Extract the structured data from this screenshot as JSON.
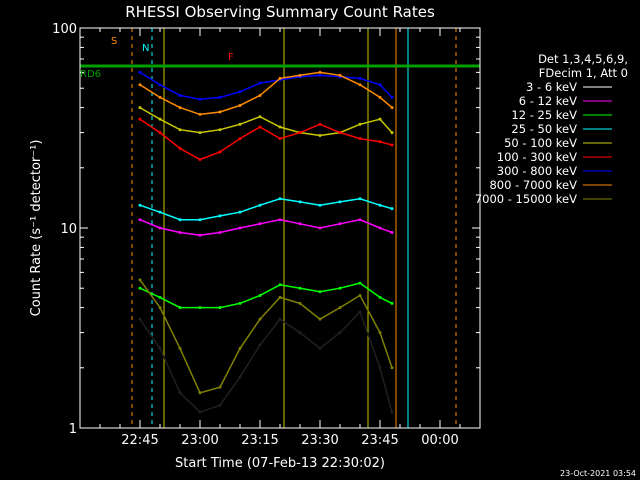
{
  "chart_data": {
    "type": "line",
    "title": "RHESSI Observing Summary Count Rates",
    "xlabel": "Start Time (07-Feb-13 22:30:02)",
    "ylabel": "Count Rate (s⁻¹ detector⁻¹)",
    "y_scale": "log",
    "ylim": [
      1,
      100
    ],
    "xlim": [
      "22:30",
      "00:10"
    ],
    "x_ticks": [
      "22:45",
      "23:00",
      "23:15",
      "23:30",
      "23:45",
      "00:00"
    ],
    "y_ticks": [
      "1",
      "10",
      "100"
    ],
    "legend_header": [
      "Det 1,3,4,5,6,9,",
      "FDecim 1, Att 0"
    ],
    "series": [
      {
        "name": "3 - 6 keV",
        "color": "#000000",
        "x": [
          "22:45",
          "22:50",
          "22:55",
          "23:00",
          "23:05",
          "23:10",
          "23:15",
          "23:20",
          "23:25",
          "23:30",
          "23:35",
          "23:40",
          "23:45",
          "23:48"
        ],
        "values": [
          3.5,
          2.5,
          1.5,
          1.2,
          1.3,
          1.8,
          2.6,
          3.5,
          3.0,
          2.5,
          3.0,
          3.8,
          2.0,
          1.2
        ]
      },
      {
        "name": "6 - 12 keV",
        "color": "#ff00ff",
        "x": [
          "22:45",
          "22:50",
          "22:55",
          "23:00",
          "23:05",
          "23:10",
          "23:15",
          "23:20",
          "23:25",
          "23:30",
          "23:35",
          "23:40",
          "23:45",
          "23:48"
        ],
        "values": [
          11,
          10,
          9.5,
          9.2,
          9.5,
          10,
          10.5,
          11,
          10.5,
          10,
          10.5,
          11,
          10,
          9.5
        ]
      },
      {
        "name": "12 - 25 keV",
        "color": "#00ff00",
        "x": [
          "22:45",
          "22:50",
          "22:55",
          "23:00",
          "23:05",
          "23:10",
          "23:15",
          "23:20",
          "23:25",
          "23:30",
          "23:35",
          "23:40",
          "23:45",
          "23:48"
        ],
        "values": [
          5.0,
          4.5,
          4.0,
          4.0,
          4.0,
          4.2,
          4.6,
          5.2,
          5.0,
          4.8,
          5.0,
          5.3,
          4.5,
          4.2
        ]
      },
      {
        "name": "25 - 50 keV",
        "color": "#00ffff",
        "x": [
          "22:45",
          "22:50",
          "22:55",
          "23:00",
          "23:05",
          "23:10",
          "23:15",
          "23:20",
          "23:25",
          "23:30",
          "23:35",
          "23:40",
          "23:45",
          "23:48"
        ],
        "values": [
          13,
          12,
          11,
          11,
          11.5,
          12,
          13,
          14,
          13.5,
          13,
          13.5,
          14,
          13,
          12.5
        ]
      },
      {
        "name": "50 - 100 keV",
        "color": "#c8c800",
        "x": [
          "22:45",
          "22:50",
          "22:55",
          "23:00",
          "23:05",
          "23:10",
          "23:15",
          "23:20",
          "23:25",
          "23:30",
          "23:35",
          "23:40",
          "23:45",
          "23:48"
        ],
        "values": [
          40,
          35,
          31,
          30,
          31,
          33,
          36,
          32,
          30,
          29,
          30,
          33,
          35,
          30
        ]
      },
      {
        "name": "100 - 300 keV",
        "color": "#ff0000",
        "x": [
          "22:45",
          "22:50",
          "22:55",
          "23:00",
          "23:05",
          "23:10",
          "23:15",
          "23:20",
          "23:25",
          "23:30",
          "23:35",
          "23:40",
          "23:45",
          "23:48"
        ],
        "values": [
          35,
          30,
          25,
          22,
          24,
          28,
          32,
          28,
          30,
          33,
          30,
          28,
          27,
          26
        ]
      },
      {
        "name": "300 - 800 keV",
        "color": "#0000ff",
        "x": [
          "22:45",
          "22:50",
          "22:55",
          "23:00",
          "23:05",
          "23:10",
          "23:15",
          "23:20",
          "23:25",
          "23:30",
          "23:35",
          "23:40",
          "23:45",
          "23:48"
        ],
        "values": [
          60,
          52,
          46,
          44,
          45,
          48,
          53,
          55,
          57,
          58,
          57,
          56,
          52,
          45
        ]
      },
      {
        "name": "800 - 7000 keV",
        "color": "#ff8c00",
        "x": [
          "22:45",
          "22:50",
          "22:55",
          "23:00",
          "23:05",
          "23:10",
          "23:15",
          "23:20",
          "23:25",
          "23:30",
          "23:35",
          "23:40",
          "23:45",
          "23:48"
        ],
        "values": [
          52,
          45,
          40,
          37,
          38,
          41,
          46,
          56,
          58,
          60,
          58,
          52,
          45,
          40
        ]
      },
      {
        "name": "7000 - 15000 keV",
        "color": "#808000",
        "x": [
          "22:45",
          "22:50",
          "22:55",
          "23:00",
          "23:05",
          "23:10",
          "23:15",
          "23:20",
          "23:25",
          "23:30",
          "23:35",
          "23:40",
          "23:45",
          "23:48"
        ],
        "values": [
          5.5,
          4.0,
          2.5,
          1.5,
          1.6,
          2.5,
          3.5,
          4.5,
          4.2,
          3.5,
          4.0,
          4.6,
          3.0,
          2.0
        ]
      }
    ],
    "annotations": [
      {
        "text": "S",
        "color": "#ff8c00"
      },
      {
        "text": "N",
        "color": "#00ffff"
      },
      {
        "text": "F",
        "color": "#ff0000"
      },
      {
        "text": "RD6",
        "color": "#00a000"
      }
    ],
    "footer": "23-Oct-2021 03:54"
  }
}
